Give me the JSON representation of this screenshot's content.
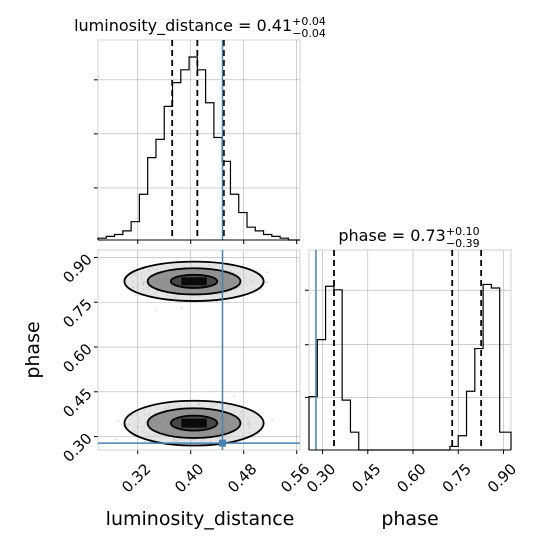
{
  "chart_data": {
    "type": "corner",
    "parameters": [
      "luminosity_distance",
      "phase"
    ],
    "axes_labels": {
      "x_bottom_left": "luminosity_distance",
      "x_bottom_right": "phase",
      "y_left_middle": "phase"
    },
    "titles": {
      "luminosity_distance": {
        "name": "luminosity_distance",
        "median": "0.41",
        "plus": "+0.04",
        "minus": "−0.04"
      },
      "phase": {
        "name": "phase",
        "median": "0.73",
        "plus": "+0.10",
        "minus": "−0.39"
      }
    },
    "truth": {
      "luminosity_distance": 0.448,
      "phase": 0.278,
      "color": "#4682b4"
    },
    "ranges": {
      "luminosity_distance": [
        0.26,
        0.565
      ],
      "phase": [
        0.255,
        0.925
      ]
    },
    "ticks": {
      "luminosity_distance": {
        "values": [
          0.32,
          0.4,
          0.48,
          0.56
        ],
        "labels": [
          "0.32",
          "0.40",
          "0.48",
          "0.56"
        ]
      },
      "phase": {
        "values": [
          0.3,
          0.45,
          0.6,
          0.75,
          0.9
        ],
        "labels": [
          "0.30",
          "0.45",
          "0.60",
          "0.75",
          "0.90"
        ]
      }
    },
    "hist_luminosity_distance": {
      "edges": [
        0.26,
        0.2725,
        0.285,
        0.2975,
        0.31,
        0.3225,
        0.335,
        0.3475,
        0.36,
        0.3725,
        0.385,
        0.3975,
        0.41,
        0.4225,
        0.435,
        0.4475,
        0.46,
        0.4725,
        0.485,
        0.4975,
        0.51,
        0.5225,
        0.535,
        0.5475,
        0.565
      ],
      "counts": [
        0.01,
        0.02,
        0.03,
        0.05,
        0.1,
        0.25,
        0.45,
        0.55,
        0.73,
        0.86,
        0.93,
        1.0,
        0.93,
        0.75,
        0.56,
        0.43,
        0.25,
        0.15,
        0.07,
        0.05,
        0.03,
        0.02,
        0.01,
        0.0
      ],
      "quantiles": [
        0.372,
        0.41,
        0.45
      ]
    },
    "hist_phase": {
      "edges": [
        0.255,
        0.2825,
        0.31,
        0.3375,
        0.365,
        0.3925,
        0.42,
        0.4475,
        0.475,
        0.5025,
        0.53,
        0.5575,
        0.585,
        0.6125,
        0.64,
        0.6675,
        0.695,
        0.7225,
        0.75,
        0.7775,
        0.805,
        0.8325,
        0.86,
        0.8875,
        0.925
      ],
      "counts": [
        0.3,
        0.62,
        0.92,
        0.9,
        0.28,
        0.1,
        0.0,
        0.0,
        0.0,
        0.0,
        0.0,
        0.0,
        0.0,
        0.0,
        0.0,
        0.0,
        0.0,
        0.02,
        0.08,
        0.33,
        0.57,
        0.93,
        0.91,
        0.1
      ],
      "quantiles": [
        0.338,
        0.73,
        0.826
      ]
    },
    "density_2d": {
      "modes": [
        {
          "luminosity_distance": 0.405,
          "phase": 0.82,
          "sigma_luminosity_distance": 0.035,
          "sigma_phase": 0.022,
          "weight": 0.5
        },
        {
          "luminosity_distance": 0.405,
          "phase": 0.345,
          "sigma_luminosity_distance": 0.035,
          "sigma_phase": 0.025,
          "weight": 0.5
        }
      ],
      "levels": [
        0.393,
        0.865,
        0.989
      ]
    },
    "grid": true
  }
}
